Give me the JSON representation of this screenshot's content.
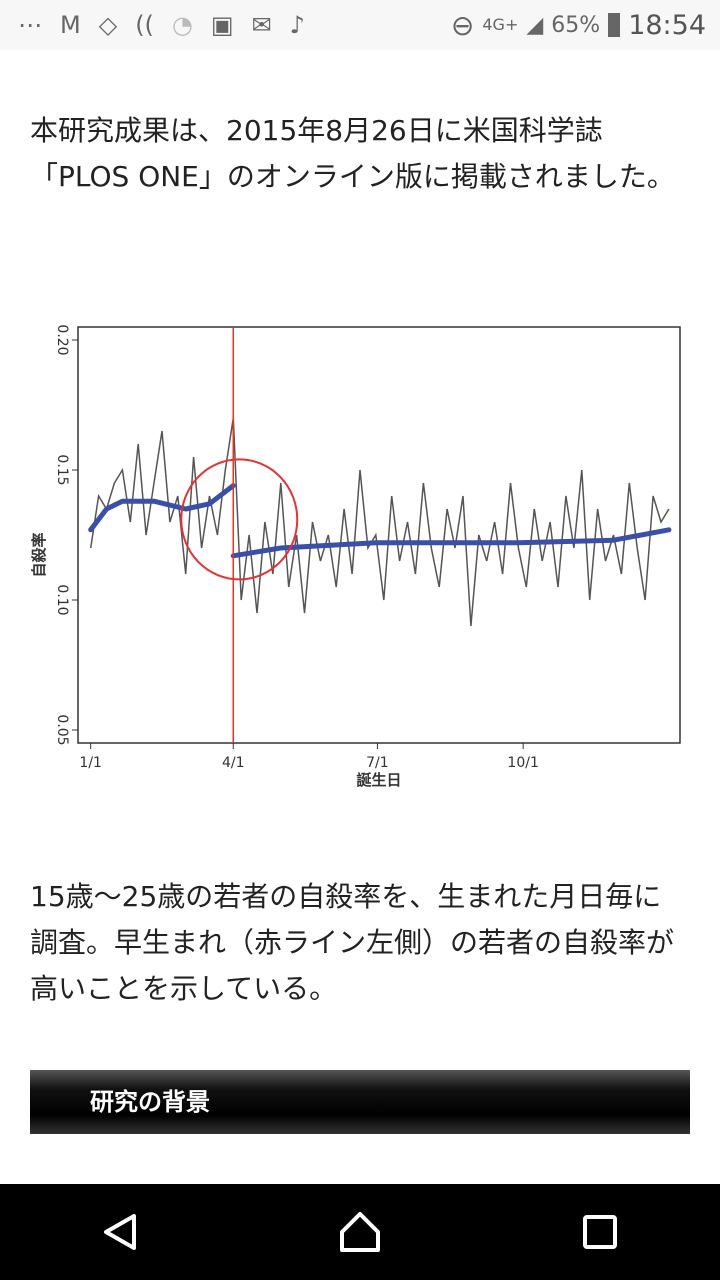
{
  "status_bar": {
    "network": "4G+",
    "battery": "65%",
    "time": "18:54",
    "icons": [
      "more-icon",
      "gmail-icon",
      "tag-icon",
      "nfc-on-icon",
      "wifi-unknown-icon",
      "rakuma-icon",
      "mail-icon",
      "clean-icon",
      "dnd-icon",
      "signal-icon",
      "battery-icon"
    ]
  },
  "article": {
    "intro": "本研究成果は、2015年8月26日に米国科学誌「PLOS ONE」のオンライン版に掲載されました。",
    "caption": "15歳〜25歳の若者の自殺率を、生まれた月日毎に調査。早生まれ（赤ライン左側）の若者の自殺率が高いことを示している。",
    "section_title": "研究の背景"
  },
  "chart_data": {
    "type": "line",
    "xlabel": "誕生日",
    "ylabel": "自殺率",
    "x_ticks": [
      {
        "day": 0,
        "label": "1/1"
      },
      {
        "day": 90,
        "label": "4/1"
      },
      {
        "day": 181,
        "label": "7/1"
      },
      {
        "day": 273,
        "label": "10/1"
      }
    ],
    "y_ticks": [
      "0.05",
      "0.10",
      "0.15",
      "0.20"
    ],
    "ylim": [
      0.045,
      0.205
    ],
    "xlim": [
      -8,
      372
    ],
    "cutoff_day": 90,
    "series_daily_approx": [
      0.12,
      0.14,
      0.135,
      0.145,
      0.15,
      0.13,
      0.16,
      0.125,
      0.145,
      0.165,
      0.13,
      0.14,
      0.11,
      0.155,
      0.12,
      0.14,
      0.125,
      0.15,
      0.17,
      0.1,
      0.125,
      0.095,
      0.13,
      0.11,
      0.145,
      0.105,
      0.125,
      0.095,
      0.13,
      0.115,
      0.125,
      0.105,
      0.135,
      0.11,
      0.15,
      0.12,
      0.125,
      0.1,
      0.14,
      0.115,
      0.13,
      0.11,
      0.145,
      0.12,
      0.105,
      0.135,
      0.12,
      0.14,
      0.09,
      0.125,
      0.115,
      0.13,
      0.11,
      0.145,
      0.12,
      0.105,
      0.135,
      0.115,
      0.13,
      0.105,
      0.14,
      0.12,
      0.15,
      0.1,
      0.135,
      0.115,
      0.125,
      0.11,
      0.145,
      0.12,
      0.1,
      0.14,
      0.13,
      0.135
    ],
    "trend_before": [
      [
        0,
        0.127
      ],
      [
        10,
        0.135
      ],
      [
        20,
        0.138
      ],
      [
        40,
        0.138
      ],
      [
        60,
        0.135
      ],
      [
        75,
        0.137
      ],
      [
        90,
        0.144
      ]
    ],
    "trend_after": [
      [
        90,
        0.117
      ],
      [
        120,
        0.12
      ],
      [
        180,
        0.122
      ],
      [
        270,
        0.122
      ],
      [
        330,
        0.123
      ],
      [
        365,
        0.127
      ]
    ],
    "colors": {
      "series": "#555555",
      "trend": "#3a4fa8",
      "cutoff": "#e33333"
    }
  }
}
